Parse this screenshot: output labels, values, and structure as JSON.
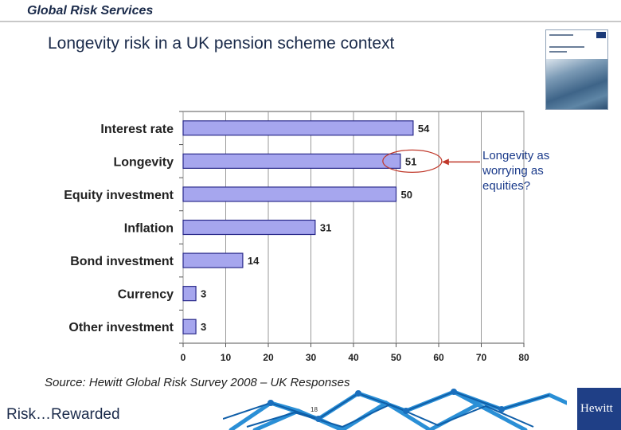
{
  "header": {
    "title": "Global Risk Services"
  },
  "slide": {
    "title": "Longevity risk in a UK pension scheme context"
  },
  "annotation": {
    "lines": [
      "Longevity as",
      "worrying as",
      "equities?"
    ]
  },
  "source": "Source: Hewitt Global Risk Survey 2008 – UK Responses",
  "footer": {
    "tagline": "Risk…Rewarded",
    "page": "18",
    "logo": "Hewitt"
  },
  "colors": {
    "bar_fill": "#a6a6ee",
    "bar_stroke": "#2a2a8a",
    "highlight": "#c0392b",
    "title": "#1a2a4a"
  },
  "chart_data": {
    "type": "bar",
    "orientation": "horizontal",
    "categories": [
      "Interest rate",
      "Longevity",
      "Equity investment",
      "Inflation",
      "Bond investment",
      "Currency",
      "Other investment"
    ],
    "values": [
      54,
      51,
      50,
      31,
      14,
      3,
      3
    ],
    "xlim": [
      0,
      80
    ],
    "xticks": [
      0,
      10,
      20,
      30,
      40,
      50,
      60,
      70,
      80
    ],
    "highlight_category": "Longevity",
    "grid": true,
    "title": "",
    "xlabel": "",
    "ylabel": ""
  }
}
